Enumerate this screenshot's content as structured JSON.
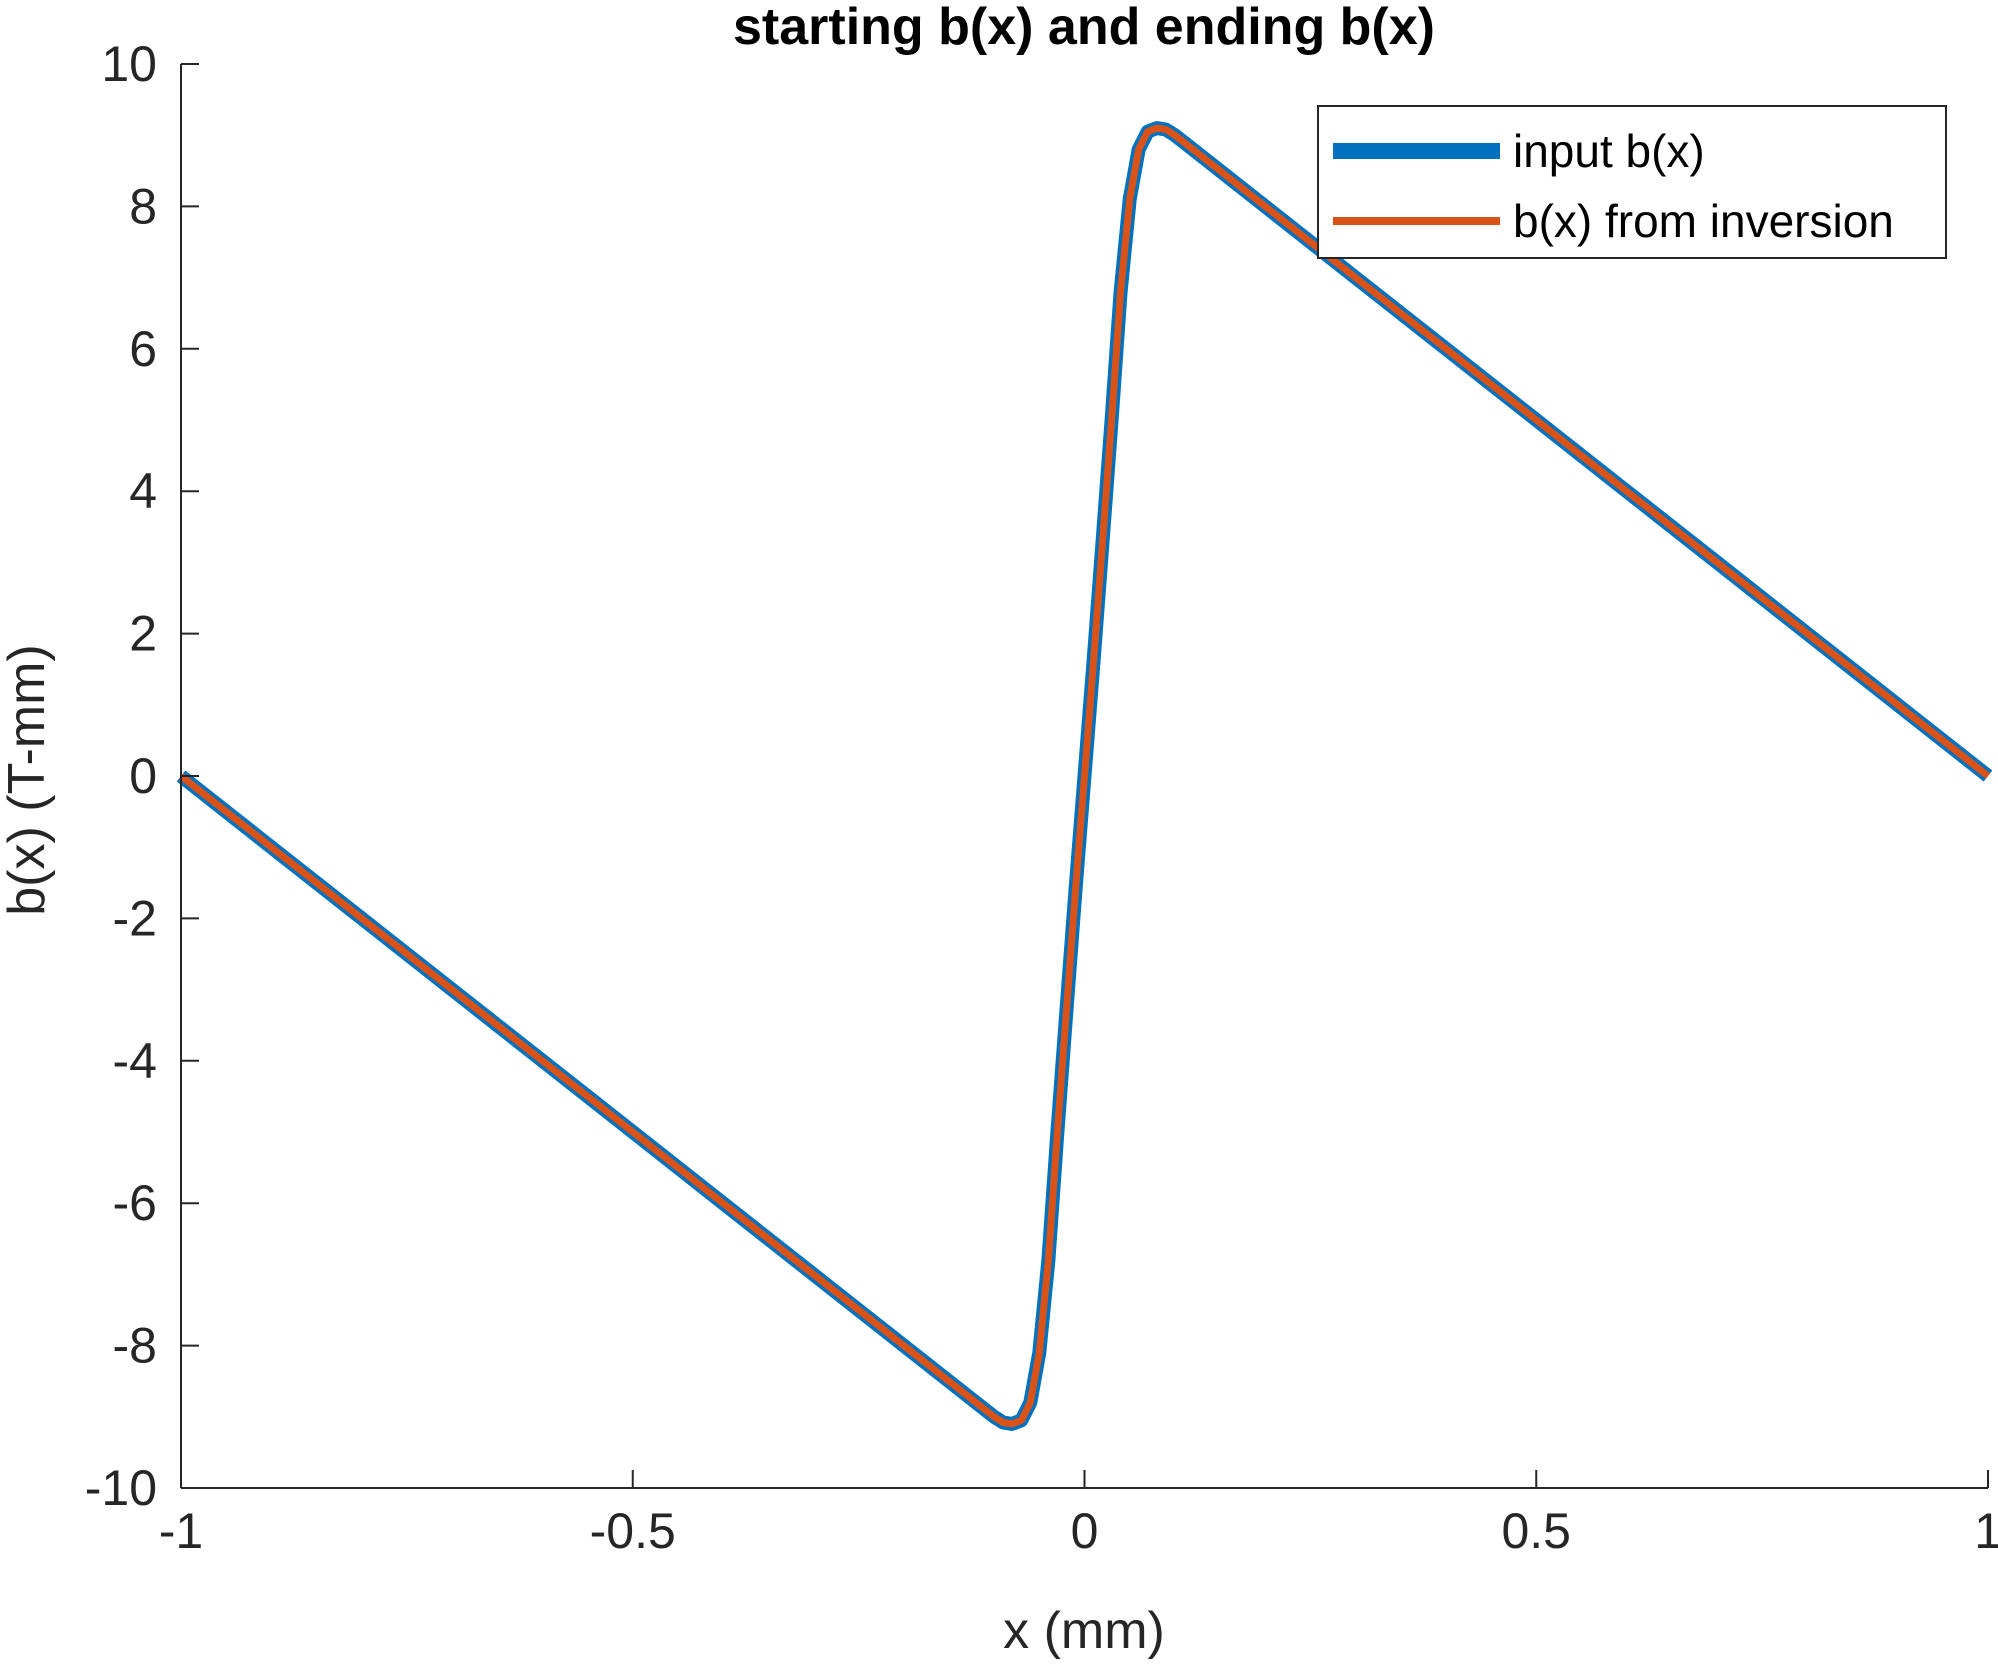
{
  "chart_data": {
    "type": "line",
    "title": "starting b(x) and ending b(x)",
    "xlabel": "x (mm)",
    "ylabel": "b(x) (T-mm)",
    "xlim": [
      -1,
      1
    ],
    "ylim": [
      -10,
      10
    ],
    "xticks": [
      -1,
      -0.5,
      0,
      0.5,
      1
    ],
    "xtick_labels": [
      "-1",
      "-0.5",
      "0",
      "0.5",
      "1"
    ],
    "yticks": [
      -10,
      -8,
      -6,
      -4,
      -2,
      0,
      2,
      4,
      6,
      8,
      10
    ],
    "ytick_labels": [
      "-10",
      "-8",
      "-6",
      "-4",
      "-2",
      "0",
      "2",
      "4",
      "6",
      "8",
      "10"
    ],
    "grid": false,
    "legend_position": "top-right",
    "x": [
      -1.0,
      -0.9,
      -0.8,
      -0.7,
      -0.6,
      -0.5,
      -0.4,
      -0.3,
      -0.2,
      -0.15,
      -0.12,
      -0.1,
      -0.09,
      -0.08,
      -0.07,
      -0.06,
      -0.05,
      -0.04,
      -0.03,
      -0.02,
      -0.01,
      0.0,
      0.01,
      0.02,
      0.03,
      0.04,
      0.05,
      0.06,
      0.07,
      0.08,
      0.09,
      0.1,
      0.12,
      0.15,
      0.2,
      0.3,
      0.4,
      0.5,
      0.6,
      0.7,
      0.8,
      0.9,
      1.0
    ],
    "series": [
      {
        "name": "input b(x)",
        "color": "#0072BD",
        "values": [
          0.0,
          -1.0,
          -2.0,
          -3.0,
          -4.0,
          -5.0,
          -6.0,
          -7.0,
          -8.0,
          -8.5,
          -8.8,
          -9.0,
          -9.08,
          -9.1,
          -9.05,
          -8.8,
          -8.1,
          -6.8,
          -5.0,
          -3.3,
          -1.6,
          0.0,
          1.6,
          3.3,
          5.0,
          6.8,
          8.1,
          8.8,
          9.05,
          9.1,
          9.08,
          9.0,
          8.8,
          8.5,
          8.0,
          7.0,
          6.0,
          5.0,
          4.0,
          3.0,
          2.0,
          1.0,
          0.0
        ]
      },
      {
        "name": "b(x) from inversion",
        "color": "#D95319",
        "values": [
          0.0,
          -1.0,
          -2.0,
          -3.0,
          -4.0,
          -5.0,
          -6.0,
          -7.0,
          -8.0,
          -8.5,
          -8.8,
          -9.0,
          -9.08,
          -9.1,
          -9.05,
          -8.8,
          -8.1,
          -6.8,
          -5.0,
          -3.3,
          -1.6,
          0.0,
          1.6,
          3.3,
          5.0,
          6.8,
          8.1,
          8.8,
          9.05,
          9.1,
          9.08,
          9.0,
          8.8,
          8.5,
          8.0,
          7.0,
          6.0,
          5.0,
          4.0,
          3.0,
          2.0,
          1.0,
          0.0
        ]
      }
    ]
  }
}
